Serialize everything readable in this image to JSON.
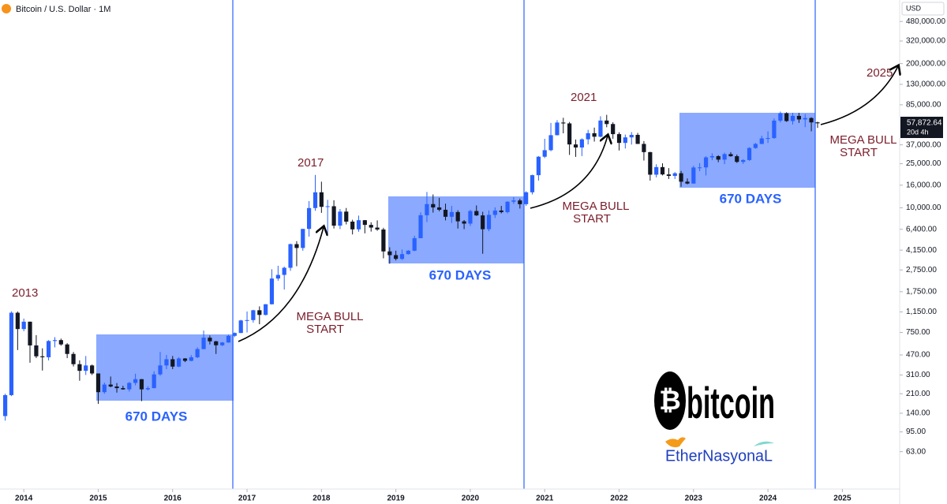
{
  "chart_data": {
    "type": "candlestick",
    "title": "Bitcoin / U.S. Dollar · 1M",
    "currency": "USD",
    "last_price_label": "57,872.64",
    "countdown": "20d 4h",
    "up_color": "#2962ff",
    "down_color": "#131722",
    "log_scale": true,
    "xlim": [
      2013.68,
      2025.77
    ],
    "xticks": [
      2014,
      2015,
      2016,
      2017,
      2018,
      2019,
      2020,
      2021,
      2022,
      2023,
      2024,
      2025
    ],
    "ylim": [
      29,
      750000
    ],
    "yticks": [
      {
        "value": 480000,
        "label": "480,000.00"
      },
      {
        "value": 320000,
        "label": "320,000.00"
      },
      {
        "value": 200000,
        "label": "200,000.00"
      },
      {
        "value": 130000,
        "label": "130,000.00"
      },
      {
        "value": 85000,
        "label": "85,000.00"
      },
      {
        "value": 37000,
        "label": "37,000.00"
      },
      {
        "value": 25000,
        "label": "25,000.00"
      },
      {
        "value": 16000,
        "label": "16,000.00"
      },
      {
        "value": 10000,
        "label": "10,000.00"
      },
      {
        "value": 6400,
        "label": "6,400.00"
      },
      {
        "value": 4150,
        "label": "4,150.00"
      },
      {
        "value": 2750,
        "label": "2,750.00"
      },
      {
        "value": 1750,
        "label": "1,750.00"
      },
      {
        "value": 1150,
        "label": "1,150.00"
      },
      {
        "value": 750,
        "label": "750.00"
      },
      {
        "value": 470,
        "label": "470.00"
      },
      {
        "value": 310,
        "label": "310.00"
      },
      {
        "value": 210,
        "label": "210.00"
      },
      {
        "value": 140,
        "label": "140.00"
      },
      {
        "value": 95,
        "label": "95.00"
      },
      {
        "value": 63,
        "label": "63.00"
      }
    ],
    "annotations": {
      "y2013": "2013",
      "y2017": "2017",
      "y2021": "2021",
      "y2025": "2025",
      "bull1a": "MEGA BULL",
      "bull1b": "START",
      "bull2a": "MEGA BULL",
      "bull2b": "START",
      "bull3a": "MEGA BULL",
      "bull3b": "START",
      "days1": "670 DAYS",
      "days2": "670 DAYS",
      "days3": "670 DAYS"
    },
    "logo": {
      "symbol": "₿",
      "word": "bitcoin",
      "credit": "EtherNasyonaL"
    },
    "candles": [
      {
        "x": 2013.75,
        "open": 132,
        "high": 210,
        "low": 120,
        "close": 204
      },
      {
        "x": 2013.833,
        "open": 204,
        "high": 1163,
        "low": 200,
        "close": 1130
      },
      {
        "x": 2013.917,
        "open": 1130,
        "high": 1160,
        "low": 520,
        "close": 805
      },
      {
        "x": 2014,
        "open": 805,
        "high": 1000,
        "low": 770,
        "close": 938
      },
      {
        "x": 2014.083,
        "open": 938,
        "high": 940,
        "low": 400,
        "close": 573
      },
      {
        "x": 2014.167,
        "open": 573,
        "high": 710,
        "low": 440,
        "close": 457
      },
      {
        "x": 2014.25,
        "open": 457,
        "high": 540,
        "low": 340,
        "close": 448
      },
      {
        "x": 2014.333,
        "open": 448,
        "high": 640,
        "low": 420,
        "close": 628
      },
      {
        "x": 2014.417,
        "open": 628,
        "high": 680,
        "low": 550,
        "close": 640
      },
      {
        "x": 2014.5,
        "open": 640,
        "high": 660,
        "low": 570,
        "close": 585
      },
      {
        "x": 2014.583,
        "open": 585,
        "high": 600,
        "low": 440,
        "close": 480
      },
      {
        "x": 2014.667,
        "open": 480,
        "high": 500,
        "low": 370,
        "close": 388
      },
      {
        "x": 2014.75,
        "open": 388,
        "high": 420,
        "low": 275,
        "close": 338
      },
      {
        "x": 2014.833,
        "open": 338,
        "high": 460,
        "low": 310,
        "close": 378
      },
      {
        "x": 2014.917,
        "open": 378,
        "high": 385,
        "low": 310,
        "close": 320
      },
      {
        "x": 2015,
        "open": 320,
        "high": 320,
        "low": 170,
        "close": 217
      },
      {
        "x": 2015.083,
        "open": 217,
        "high": 265,
        "low": 210,
        "close": 254
      },
      {
        "x": 2015.167,
        "open": 254,
        "high": 300,
        "low": 240,
        "close": 244
      },
      {
        "x": 2015.25,
        "open": 244,
        "high": 262,
        "low": 215,
        "close": 236
      },
      {
        "x": 2015.333,
        "open": 236,
        "high": 248,
        "low": 228,
        "close": 230
      },
      {
        "x": 2015.417,
        "open": 230,
        "high": 268,
        "low": 220,
        "close": 263
      },
      {
        "x": 2015.5,
        "open": 263,
        "high": 318,
        "low": 250,
        "close": 284
      },
      {
        "x": 2015.583,
        "open": 284,
        "high": 285,
        "low": 180,
        "close": 230
      },
      {
        "x": 2015.667,
        "open": 230,
        "high": 245,
        "low": 225,
        "close": 236
      },
      {
        "x": 2015.75,
        "open": 236,
        "high": 335,
        "low": 235,
        "close": 314
      },
      {
        "x": 2015.833,
        "open": 314,
        "high": 500,
        "low": 305,
        "close": 378
      },
      {
        "x": 2015.917,
        "open": 378,
        "high": 470,
        "low": 350,
        "close": 430
      },
      {
        "x": 2016,
        "open": 430,
        "high": 460,
        "low": 350,
        "close": 369
      },
      {
        "x": 2016.083,
        "open": 369,
        "high": 448,
        "low": 365,
        "close": 437
      },
      {
        "x": 2016.167,
        "open": 437,
        "high": 440,
        "low": 405,
        "close": 416
      },
      {
        "x": 2016.25,
        "open": 416,
        "high": 468,
        "low": 412,
        "close": 448
      },
      {
        "x": 2016.333,
        "open": 448,
        "high": 550,
        "low": 440,
        "close": 531
      },
      {
        "x": 2016.417,
        "open": 531,
        "high": 780,
        "low": 530,
        "close": 673
      },
      {
        "x": 2016.5,
        "open": 673,
        "high": 705,
        "low": 585,
        "close": 624
      },
      {
        "x": 2016.583,
        "open": 624,
        "high": 630,
        "low": 480,
        "close": 575
      },
      {
        "x": 2016.667,
        "open": 575,
        "high": 615,
        "low": 565,
        "close": 609
      },
      {
        "x": 2016.75,
        "open": 609,
        "high": 715,
        "low": 605,
        "close": 699
      },
      {
        "x": 2016.833,
        "open": 699,
        "high": 750,
        "low": 680,
        "close": 742
      },
      {
        "x": 2016.917,
        "open": 742,
        "high": 975,
        "low": 740,
        "close": 963
      },
      {
        "x": 2017,
        "open": 963,
        "high": 1160,
        "low": 750,
        "close": 970
      },
      {
        "x": 2017.083,
        "open": 970,
        "high": 1200,
        "low": 920,
        "close": 1190
      },
      {
        "x": 2017.167,
        "open": 1190,
        "high": 1290,
        "low": 890,
        "close": 1080
      },
      {
        "x": 2017.25,
        "open": 1080,
        "high": 1350,
        "low": 1070,
        "close": 1348
      },
      {
        "x": 2017.333,
        "open": 1348,
        "high": 2790,
        "low": 1340,
        "close": 2300
      },
      {
        "x": 2017.417,
        "open": 2300,
        "high": 3000,
        "low": 2200,
        "close": 2480
      },
      {
        "x": 2017.5,
        "open": 2480,
        "high": 2950,
        "low": 1830,
        "close": 2875
      },
      {
        "x": 2017.583,
        "open": 2875,
        "high": 4750,
        "low": 2700,
        "close": 4700
      },
      {
        "x": 2017.667,
        "open": 4700,
        "high": 5000,
        "low": 2970,
        "close": 4340
      },
      {
        "x": 2017.75,
        "open": 4340,
        "high": 6450,
        "low": 4100,
        "close": 6450
      },
      {
        "x": 2017.833,
        "open": 6450,
        "high": 11500,
        "low": 5500,
        "close": 9950
      },
      {
        "x": 2017.917,
        "open": 9950,
        "high": 19800,
        "low": 9400,
        "close": 13800
      },
      {
        "x": 2018,
        "open": 13800,
        "high": 17200,
        "low": 9000,
        "close": 10200
      },
      {
        "x": 2018.083,
        "open": 10200,
        "high": 11800,
        "low": 5900,
        "close": 10330
      },
      {
        "x": 2018.167,
        "open": 10330,
        "high": 11700,
        "low": 6500,
        "close": 6900
      },
      {
        "x": 2018.25,
        "open": 6900,
        "high": 9750,
        "low": 6430,
        "close": 9240
      },
      {
        "x": 2018.333,
        "open": 9240,
        "high": 9960,
        "low": 7080,
        "close": 7500
      },
      {
        "x": 2018.417,
        "open": 7500,
        "high": 7800,
        "low": 5750,
        "close": 6390
      },
      {
        "x": 2018.5,
        "open": 6390,
        "high": 8500,
        "low": 6080,
        "close": 7730
      },
      {
        "x": 2018.583,
        "open": 7730,
        "high": 7760,
        "low": 5880,
        "close": 7010
      },
      {
        "x": 2018.667,
        "open": 7010,
        "high": 7400,
        "low": 6100,
        "close": 6630
      },
      {
        "x": 2018.75,
        "open": 6630,
        "high": 7700,
        "low": 6200,
        "close": 6370
      },
      {
        "x": 2018.833,
        "open": 6370,
        "high": 6600,
        "low": 3500,
        "close": 4040
      },
      {
        "x": 2018.917,
        "open": 4040,
        "high": 4400,
        "low": 3130,
        "close": 3740
      },
      {
        "x": 2019,
        "open": 3740,
        "high": 4100,
        "low": 3350,
        "close": 3460
      },
      {
        "x": 2019.083,
        "open": 3460,
        "high": 4200,
        "low": 3380,
        "close": 3820
      },
      {
        "x": 2019.167,
        "open": 3820,
        "high": 4150,
        "low": 3780,
        "close": 4100
      },
      {
        "x": 2019.25,
        "open": 4100,
        "high": 5600,
        "low": 4060,
        "close": 5320
      },
      {
        "x": 2019.333,
        "open": 5320,
        "high": 9100,
        "low": 5320,
        "close": 8570
      },
      {
        "x": 2019.417,
        "open": 8570,
        "high": 13900,
        "low": 7440,
        "close": 10800
      },
      {
        "x": 2019.5,
        "open": 10800,
        "high": 13200,
        "low": 9050,
        "close": 10080
      },
      {
        "x": 2019.583,
        "open": 10080,
        "high": 12300,
        "low": 9300,
        "close": 9600
      },
      {
        "x": 2019.667,
        "open": 9600,
        "high": 10900,
        "low": 7700,
        "close": 8300
      },
      {
        "x": 2019.75,
        "open": 8300,
        "high": 10400,
        "low": 7300,
        "close": 9150
      },
      {
        "x": 2019.833,
        "open": 9150,
        "high": 9500,
        "low": 6500,
        "close": 7550
      },
      {
        "x": 2019.917,
        "open": 7550,
        "high": 7750,
        "low": 6420,
        "close": 7200
      },
      {
        "x": 2020,
        "open": 7200,
        "high": 9600,
        "low": 6850,
        "close": 9350
      },
      {
        "x": 2020.083,
        "open": 9350,
        "high": 10500,
        "low": 8450,
        "close": 8540
      },
      {
        "x": 2020.167,
        "open": 8540,
        "high": 9200,
        "low": 3850,
        "close": 6410
      },
      {
        "x": 2020.25,
        "open": 6410,
        "high": 9470,
        "low": 6150,
        "close": 8630
      },
      {
        "x": 2020.333,
        "open": 8630,
        "high": 10080,
        "low": 8100,
        "close": 9450
      },
      {
        "x": 2020.417,
        "open": 9450,
        "high": 10400,
        "low": 8900,
        "close": 9140
      },
      {
        "x": 2020.5,
        "open": 9140,
        "high": 11450,
        "low": 8900,
        "close": 11350
      },
      {
        "x": 2020.583,
        "open": 11350,
        "high": 12470,
        "low": 10850,
        "close": 11650
      },
      {
        "x": 2020.667,
        "open": 11650,
        "high": 12100,
        "low": 9850,
        "close": 10780
      },
      {
        "x": 2020.75,
        "open": 10780,
        "high": 14100,
        "low": 10400,
        "close": 13800
      },
      {
        "x": 2020.833,
        "open": 13800,
        "high": 19900,
        "low": 13200,
        "close": 19700
      },
      {
        "x": 2020.917,
        "open": 19700,
        "high": 29300,
        "low": 17600,
        "close": 28900
      },
      {
        "x": 2021,
        "open": 28900,
        "high": 41950,
        "low": 28100,
        "close": 33100
      },
      {
        "x": 2021.083,
        "open": 33100,
        "high": 58300,
        "low": 32400,
        "close": 45200
      },
      {
        "x": 2021.167,
        "open": 45200,
        "high": 61800,
        "low": 45000,
        "close": 58800
      },
      {
        "x": 2021.25,
        "open": 58800,
        "high": 64900,
        "low": 47000,
        "close": 57700
      },
      {
        "x": 2021.333,
        "open": 57700,
        "high": 59500,
        "low": 30000,
        "close": 37300
      },
      {
        "x": 2021.417,
        "open": 37300,
        "high": 41300,
        "low": 28800,
        "close": 35000
      },
      {
        "x": 2021.5,
        "open": 35000,
        "high": 42300,
        "low": 29300,
        "close": 41500
      },
      {
        "x": 2021.583,
        "open": 41500,
        "high": 50500,
        "low": 37300,
        "close": 47100
      },
      {
        "x": 2021.667,
        "open": 47100,
        "high": 52900,
        "low": 39600,
        "close": 43800
      },
      {
        "x": 2021.75,
        "open": 43800,
        "high": 67000,
        "low": 43300,
        "close": 61300
      },
      {
        "x": 2021.833,
        "open": 61300,
        "high": 69000,
        "low": 53300,
        "close": 57000
      },
      {
        "x": 2021.917,
        "open": 57000,
        "high": 59100,
        "low": 42000,
        "close": 46200
      },
      {
        "x": 2022,
        "open": 46200,
        "high": 48000,
        "low": 32900,
        "close": 38500
      },
      {
        "x": 2022.083,
        "open": 38500,
        "high": 45800,
        "low": 34300,
        "close": 43200
      },
      {
        "x": 2022.167,
        "open": 43200,
        "high": 48200,
        "low": 37200,
        "close": 45500
      },
      {
        "x": 2022.25,
        "open": 45500,
        "high": 47400,
        "low": 37700,
        "close": 37700
      },
      {
        "x": 2022.333,
        "open": 37700,
        "high": 40000,
        "low": 26700,
        "close": 31800
      },
      {
        "x": 2022.417,
        "open": 31800,
        "high": 32000,
        "low": 17600,
        "close": 19900
      },
      {
        "x": 2022.5,
        "open": 19900,
        "high": 24700,
        "low": 18800,
        "close": 23300
      },
      {
        "x": 2022.583,
        "open": 23300,
        "high": 25200,
        "low": 19600,
        "close": 20000
      },
      {
        "x": 2022.667,
        "open": 20000,
        "high": 22800,
        "low": 18200,
        "close": 19400
      },
      {
        "x": 2022.75,
        "open": 19400,
        "high": 21000,
        "low": 18200,
        "close": 20500
      },
      {
        "x": 2022.833,
        "open": 20500,
        "high": 21500,
        "low": 15500,
        "close": 17200
      },
      {
        "x": 2022.917,
        "open": 17200,
        "high": 18400,
        "low": 16300,
        "close": 16550
      },
      {
        "x": 2023,
        "open": 16550,
        "high": 23900,
        "low": 16500,
        "close": 23100
      },
      {
        "x": 2023.083,
        "open": 23100,
        "high": 25300,
        "low": 21400,
        "close": 23150
      },
      {
        "x": 2023.167,
        "open": 23150,
        "high": 29200,
        "low": 19600,
        "close": 28500
      },
      {
        "x": 2023.25,
        "open": 28500,
        "high": 31000,
        "low": 26900,
        "close": 29250
      },
      {
        "x": 2023.333,
        "open": 29250,
        "high": 29800,
        "low": 25800,
        "close": 27200
      },
      {
        "x": 2023.417,
        "open": 27200,
        "high": 31400,
        "low": 24800,
        "close": 30500
      },
      {
        "x": 2023.5,
        "open": 30500,
        "high": 31800,
        "low": 28900,
        "close": 29200
      },
      {
        "x": 2023.583,
        "open": 29200,
        "high": 30200,
        "low": 25400,
        "close": 25950
      },
      {
        "x": 2023.667,
        "open": 25950,
        "high": 27500,
        "low": 24900,
        "close": 26970
      },
      {
        "x": 2023.75,
        "open": 26970,
        "high": 35200,
        "low": 26550,
        "close": 34650
      },
      {
        "x": 2023.833,
        "open": 34650,
        "high": 38450,
        "low": 34100,
        "close": 37700
      },
      {
        "x": 2023.917,
        "open": 37700,
        "high": 44700,
        "low": 37600,
        "close": 42300
      },
      {
        "x": 2024,
        "open": 42300,
        "high": 48950,
        "low": 38500,
        "close": 42600
      },
      {
        "x": 2024.083,
        "open": 42600,
        "high": 64000,
        "low": 41900,
        "close": 61200
      },
      {
        "x": 2024.167,
        "open": 61200,
        "high": 73800,
        "low": 59000,
        "close": 71300
      },
      {
        "x": 2024.25,
        "open": 71300,
        "high": 72800,
        "low": 59600,
        "close": 60650
      },
      {
        "x": 2024.333,
        "open": 60650,
        "high": 71950,
        "low": 56500,
        "close": 67500
      },
      {
        "x": 2024.417,
        "open": 67500,
        "high": 71950,
        "low": 58400,
        "close": 62700
      },
      {
        "x": 2024.5,
        "open": 62700,
        "high": 70000,
        "low": 53500,
        "close": 64600
      },
      {
        "x": 2024.583,
        "open": 64600,
        "high": 65600,
        "low": 49000,
        "close": 58970
      },
      {
        "x": 2024.667,
        "open": 58970,
        "high": 59800,
        "low": 52550,
        "close": 57872.64
      }
    ]
  }
}
